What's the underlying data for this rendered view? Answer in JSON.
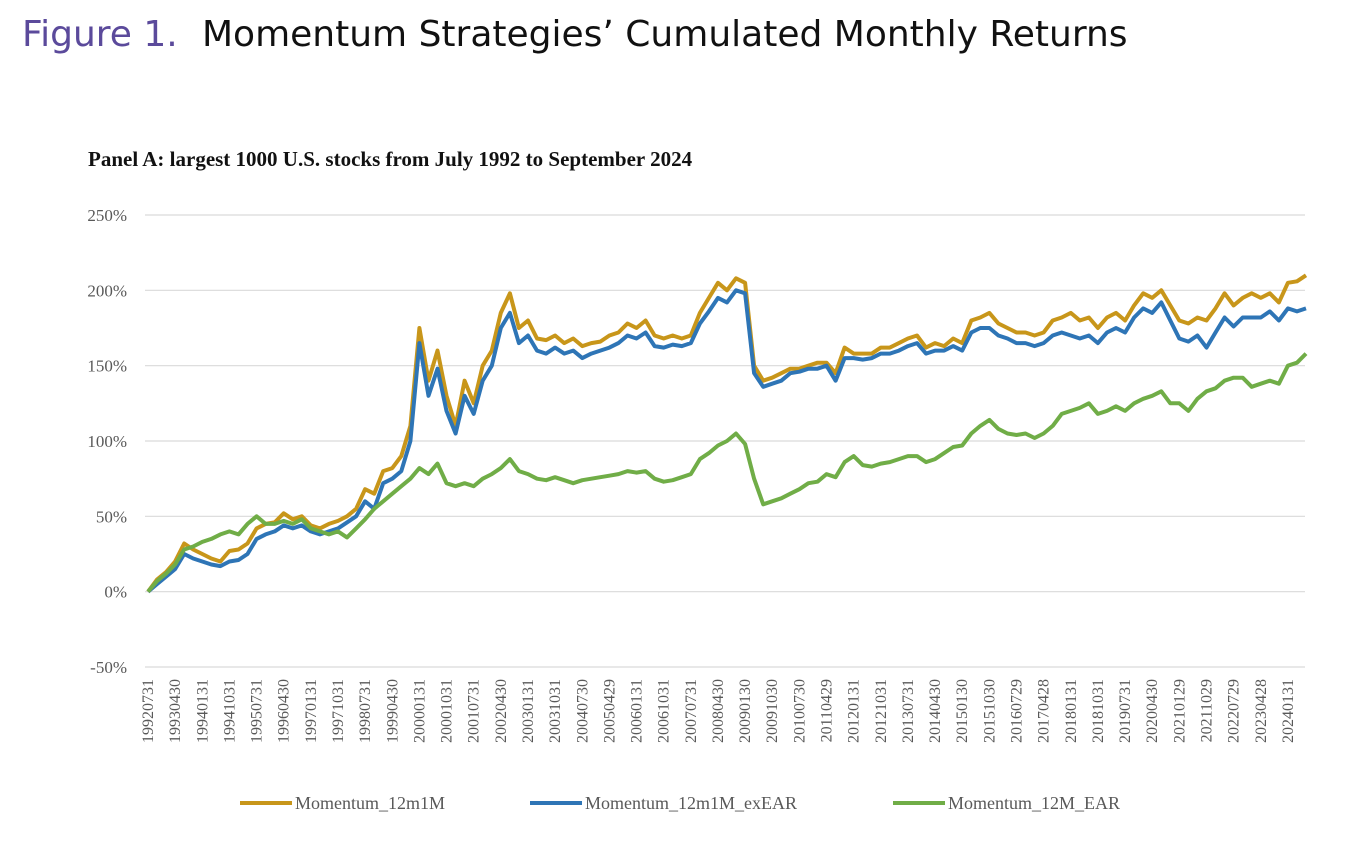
{
  "chart_data": {
    "type": "line",
    "figure_label": "Figure 1.",
    "title": "Momentum Strategies’ Cumulated Monthly Returns",
    "subtitle": "Panel A: largest 1000 U.S. stocks from July 1992 to September 2024",
    "categories": [
      "19920731",
      null,
      null,
      "19930430",
      null,
      null,
      "19940131",
      null,
      null,
      "19941031",
      null,
      null,
      "19950731",
      null,
      null,
      "19960430",
      null,
      null,
      "19970131",
      null,
      null,
      "19971031",
      null,
      null,
      "19980731",
      null,
      null,
      "19990430",
      null,
      null,
      "20000131",
      null,
      null,
      "20001031",
      null,
      null,
      "20010731",
      null,
      null,
      "20020430",
      null,
      null,
      "20030131",
      null,
      null,
      "20031031",
      null,
      null,
      "20040730",
      null,
      null,
      "20050429",
      null,
      null,
      "20060131",
      null,
      null,
      "20061031",
      null,
      null,
      "20070731",
      null,
      null,
      "20080430",
      null,
      null,
      "20090130",
      null,
      null,
      "20091030",
      null,
      null,
      "20100730",
      null,
      null,
      "20110429",
      null,
      null,
      "20120131",
      null,
      null,
      "20121031",
      null,
      null,
      "20130731",
      null,
      null,
      "20140430",
      null,
      null,
      "20150130",
      null,
      null,
      "20151030",
      null,
      null,
      "20160729",
      null,
      null,
      "20170428",
      null,
      null,
      "20180131",
      null,
      null,
      "20181031",
      null,
      null,
      "20190731",
      null,
      null,
      "20200430",
      null,
      null,
      "20210129",
      null,
      null,
      "20211029",
      null,
      null,
      "20220729",
      null,
      null,
      "20230428",
      null,
      null,
      "20240131",
      null,
      null
    ],
    "series": [
      {
        "name": "Momentum_12m1M",
        "color": "#c8961a",
        "values": [
          0,
          8,
          13,
          20,
          32,
          28,
          25,
          22,
          20,
          27,
          28,
          32,
          42,
          45,
          46,
          52,
          48,
          50,
          44,
          42,
          45,
          47,
          50,
          55,
          68,
          65,
          80,
          82,
          90,
          110,
          175,
          140,
          160,
          130,
          110,
          140,
          125,
          150,
          160,
          185,
          198,
          175,
          180,
          168,
          167,
          170,
          165,
          168,
          163,
          165,
          166,
          170,
          172,
          178,
          175,
          180,
          170,
          168,
          170,
          168,
          170,
          185,
          195,
          205,
          200,
          208,
          205,
          150,
          140,
          142,
          145,
          148,
          148,
          150,
          152,
          152,
          145,
          162,
          158,
          158,
          158,
          162,
          162,
          165,
          168,
          170,
          162,
          165,
          163,
          168,
          165,
          180,
          182,
          185,
          178,
          175,
          172,
          172,
          170,
          172,
          180,
          182,
          185,
          180,
          182,
          175,
          182,
          185,
          180,
          190,
          198,
          195,
          200,
          190,
          180,
          178,
          182,
          180,
          188,
          198,
          190,
          195,
          198,
          195,
          198,
          192,
          205,
          206,
          210
        ]
      },
      {
        "name": "Momentum_12m1M_exEAR",
        "color": "#2e75b6",
        "values": [
          0,
          5,
          10,
          15,
          25,
          22,
          20,
          18,
          17,
          20,
          21,
          25,
          35,
          38,
          40,
          44,
          42,
          44,
          40,
          38,
          40,
          42,
          46,
          50,
          60,
          55,
          72,
          75,
          80,
          100,
          165,
          130,
          148,
          120,
          105,
          130,
          118,
          140,
          150,
          175,
          185,
          165,
          170,
          160,
          158,
          162,
          158,
          160,
          155,
          158,
          160,
          162,
          165,
          170,
          168,
          172,
          163,
          162,
          164,
          163,
          165,
          178,
          186,
          195,
          192,
          200,
          198,
          145,
          136,
          138,
          140,
          145,
          146,
          148,
          148,
          150,
          140,
          155,
          155,
          154,
          155,
          158,
          158,
          160,
          163,
          165,
          158,
          160,
          160,
          163,
          160,
          172,
          175,
          175,
          170,
          168,
          165,
          165,
          163,
          165,
          170,
          172,
          170,
          168,
          170,
          165,
          172,
          175,
          172,
          182,
          188,
          185,
          192,
          180,
          168,
          166,
          170,
          162,
          172,
          182,
          176,
          182,
          182,
          182,
          186,
          180,
          188,
          186,
          188
        ]
      },
      {
        "name": "Momentum_12M_EAR",
        "color": "#70ad47",
        "values": [
          0,
          7,
          12,
          18,
          28,
          30,
          33,
          35,
          38,
          40,
          38,
          45,
          50,
          45,
          45,
          47,
          45,
          48,
          42,
          40,
          38,
          40,
          36,
          42,
          48,
          55,
          60,
          65,
          70,
          75,
          82,
          78,
          85,
          72,
          70,
          72,
          70,
          75,
          78,
          82,
          88,
          80,
          78,
          75,
          74,
          76,
          74,
          72,
          74,
          75,
          76,
          77,
          78,
          80,
          79,
          80,
          75,
          73,
          74,
          76,
          78,
          88,
          92,
          97,
          100,
          105,
          98,
          75,
          58,
          60,
          62,
          65,
          68,
          72,
          73,
          78,
          76,
          86,
          90,
          84,
          83,
          85,
          86,
          88,
          90,
          90,
          86,
          88,
          92,
          96,
          97,
          105,
          110,
          114,
          108,
          105,
          104,
          105,
          102,
          105,
          110,
          118,
          120,
          122,
          125,
          118,
          120,
          123,
          120,
          125,
          128,
          130,
          133,
          125,
          125,
          120,
          128,
          133,
          135,
          140,
          142,
          142,
          136,
          138,
          140,
          138,
          150,
          152,
          158
        ]
      }
    ],
    "ylim": [
      -50,
      250
    ],
    "yticks": [
      {
        "value": -50,
        "label": "-50%"
      },
      {
        "value": 0,
        "label": "0%"
      },
      {
        "value": 50,
        "label": "50%"
      },
      {
        "value": 100,
        "label": "100%"
      },
      {
        "value": 150,
        "label": "150%"
      },
      {
        "value": 200,
        "label": "200%"
      },
      {
        "value": 250,
        "label": "250%"
      }
    ],
    "grid": true,
    "legend": "bottom"
  }
}
